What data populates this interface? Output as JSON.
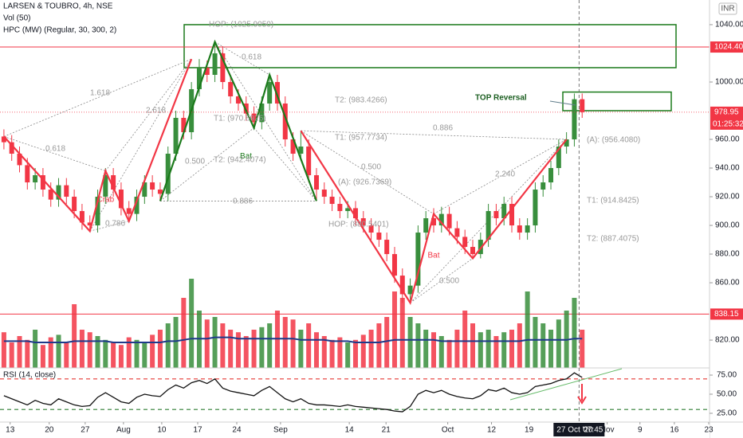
{
  "chart_data": {
    "type": "candlestick",
    "title": "LARSEN & TOUBRO, 4h, NSE",
    "indicator_labels": [
      "Vol (50)",
      "HPC (MW) (Regular, 30, 300, 2)"
    ],
    "currency": "INR",
    "up_color": "#388e3c",
    "down_color": "#f23645",
    "xlim": [
      -0.5,
      90.3
    ],
    "ylim": [
      800.6,
      1057.2
    ],
    "yticks": [
      {
        "value": 820,
        "label": "820.00"
      },
      {
        "value": 860,
        "label": "860.00"
      },
      {
        "value": 880,
        "label": "880.00"
      },
      {
        "value": 900,
        "label": "900.00"
      },
      {
        "value": 920,
        "label": "920.00"
      },
      {
        "value": 940,
        "label": "940.00"
      },
      {
        "value": 960,
        "label": "960.00"
      },
      {
        "value": 1000,
        "label": "1000.00"
      },
      {
        "value": 1040,
        "label": "1040.00"
      }
    ],
    "xticks": [
      {
        "value": 0.8,
        "label": "13"
      },
      {
        "value": 5.8,
        "label": "20"
      },
      {
        "value": 10.4,
        "label": "27"
      },
      {
        "value": 15.3,
        "label": "Aug"
      },
      {
        "value": 20.2,
        "label": "10"
      },
      {
        "value": 24.8,
        "label": "17"
      },
      {
        "value": 29.8,
        "label": "24"
      },
      {
        "value": 35.4,
        "label": "Sep"
      },
      {
        "value": 44.2,
        "label": "14"
      },
      {
        "value": 48.9,
        "label": "21"
      },
      {
        "value": 56.8,
        "label": "Oct"
      },
      {
        "value": 62.4,
        "label": "12"
      },
      {
        "value": 67.2,
        "label": "19"
      },
      {
        "value": 77.2,
        "label": "Nov"
      },
      {
        "value": 81.4,
        "label": "9"
      },
      {
        "value": 85.8,
        "label": "16"
      },
      {
        "value": 90.2,
        "label": "23"
      }
    ],
    "open": [
      962,
      958,
      950,
      942,
      930,
      935,
      925,
      918,
      928,
      920,
      910,
      902,
      900,
      920,
      935,
      925,
      912,
      908,
      920,
      930,
      925,
      922,
      950,
      975,
      965,
      995,
      1010,
      1005,
      1020,
      1000,
      990,
      985,
      978,
      972,
      985,
      1000,
      985,
      960,
      950,
      955,
      935,
      925,
      920,
      915,
      910,
      912,
      905,
      900,
      895,
      890,
      880,
      865,
      852,
      858,
      895,
      905,
      900,
      908,
      898,
      892,
      885,
      880,
      890,
      910,
      905,
      915,
      900,
      895,
      900,
      925,
      930,
      940,
      955,
      960,
      988
    ],
    "high": [
      967,
      963,
      955,
      947,
      940,
      940,
      930,
      933,
      933,
      925,
      915,
      907,
      925,
      940,
      940,
      930,
      917,
      925,
      935,
      935,
      930,
      955,
      980,
      980,
      1000,
      1016,
      1015,
      1028,
      1025,
      1005,
      995,
      990,
      983,
      990,
      1005,
      1005,
      990,
      965,
      966,
      960,
      940,
      930,
      925,
      920,
      917,
      917,
      910,
      905,
      900,
      895,
      885,
      870,
      863,
      900,
      910,
      912,
      913,
      913,
      903,
      897,
      890,
      895,
      915,
      915,
      920,
      920,
      905,
      905,
      930,
      935,
      945,
      960,
      965,
      992,
      992
    ],
    "low": [
      953,
      945,
      937,
      925,
      925,
      920,
      913,
      913,
      915,
      905,
      897,
      896,
      895,
      915,
      920,
      907,
      903,
      903,
      915,
      920,
      917,
      917,
      945,
      960,
      960,
      990,
      1000,
      1000,
      995,
      985,
      980,
      973,
      967,
      967,
      980,
      980,
      955,
      945,
      945,
      930,
      917,
      915,
      910,
      905,
      905,
      900,
      895,
      890,
      885,
      875,
      860,
      846,
      846,
      853,
      890,
      895,
      895,
      893,
      887,
      880,
      877,
      877,
      885,
      900,
      900,
      895,
      890,
      890,
      895,
      920,
      925,
      935,
      950,
      955,
      975
    ],
    "close": [
      958,
      950,
      942,
      930,
      935,
      925,
      918,
      928,
      920,
      910,
      902,
      900,
      920,
      935,
      925,
      912,
      908,
      920,
      930,
      925,
      922,
      950,
      975,
      965,
      995,
      1010,
      1005,
      1020,
      1000,
      990,
      985,
      978,
      972,
      985,
      1000,
      985,
      960,
      950,
      955,
      935,
      925,
      920,
      915,
      910,
      912,
      905,
      900,
      895,
      890,
      880,
      865,
      852,
      858,
      895,
      905,
      900,
      908,
      898,
      892,
      885,
      880,
      890,
      910,
      905,
      915,
      900,
      895,
      900,
      925,
      930,
      940,
      955,
      960,
      988,
      979
    ],
    "volume": [
      28,
      20,
      25,
      22,
      30,
      18,
      24,
      26,
      20,
      50,
      30,
      28,
      25,
      22,
      20,
      18,
      24,
      22,
      20,
      26,
      30,
      35,
      40,
      55,
      70,
      45,
      38,
      40,
      35,
      30,
      28,
      25,
      30,
      32,
      35,
      45,
      40,
      38,
      30,
      35,
      28,
      25,
      22,
      24,
      20,
      22,
      26,
      30,
      35,
      40,
      60,
      55,
      40,
      35,
      30,
      28,
      25,
      22,
      30,
      45,
      35,
      28,
      30,
      25,
      28,
      30,
      35,
      60,
      40,
      35,
      30,
      38,
      45,
      55,
      30
    ],
    "volume_ma": {
      "color": "#1e3a8a",
      "values": [
        21,
        21,
        21,
        21,
        20,
        20,
        20,
        20,
        20,
        21,
        21,
        21,
        21,
        21,
        20,
        20,
        20,
        20,
        20,
        20,
        20,
        21,
        21,
        22,
        23,
        23,
        23,
        24,
        24,
        24,
        23,
        23,
        23,
        23,
        23,
        23,
        23,
        23,
        22,
        22,
        22,
        22,
        21,
        21,
        21,
        20,
        20,
        20,
        20,
        21,
        22,
        22,
        22,
        22,
        22,
        22,
        21,
        21,
        21,
        21,
        21,
        21,
        21,
        21,
        21,
        21,
        21,
        22,
        22,
        22,
        22,
        22,
        22,
        23,
        23
      ]
    },
    "levels": [
      {
        "value": 1024.4,
        "label": "1024.40",
        "color": "#f23645"
      },
      {
        "value": 838.15,
        "label": "838.15",
        "color": "#f23645"
      }
    ],
    "last_price": {
      "value": 978.95,
      "label": "978.95",
      "countdown": "01:25:32"
    },
    "zones": [
      {
        "top": 1040,
        "bottom": 1010,
        "color": "#1b7a1b"
      },
      {
        "top": 993,
        "bottom": 980,
        "color": "#1b7a1b"
      }
    ],
    "patterns": [
      {
        "name": "Crab",
        "color": "#f23645",
        "points": [
          [
            0,
            962
          ],
          [
            11,
            896
          ],
          [
            13,
            938
          ],
          [
            16,
            903
          ],
          [
            24,
            1016
          ]
        ]
      },
      {
        "name": "Bat",
        "color": "#1b7a1b",
        "points": [
          [
            20,
            917
          ],
          [
            27,
            1028
          ],
          [
            32,
            968
          ],
          [
            34,
            1005
          ],
          [
            40,
            917
          ]
        ]
      },
      {
        "name": "Bat",
        "color": "#f23645",
        "points": [
          [
            38,
            966
          ],
          [
            52,
            846
          ],
          [
            55,
            908
          ],
          [
            60,
            877
          ],
          [
            72,
            960
          ]
        ]
      }
    ],
    "annotations": [
      "1.618",
      "0.618",
      "2.618",
      "0.786",
      "0.618",
      "HOP: (1025.9050)",
      "T1: (970.8926)",
      "0.500",
      "T2: (942.4074)",
      "0.886",
      "T2: (983.4266)",
      "T1: (957.7734)",
      "0.886",
      "0.500",
      "(A): (926.7369)",
      "HOP: (880.5401)",
      "0.500",
      "2.240",
      "(A): (956.4080)",
      "T1: (914.8425)",
      "T2: (887.4075)",
      "TOP Reversal"
    ],
    "crosshair": {
      "x": 73.6,
      "date_label": "27 Oct '20",
      "time_label": "07:45"
    },
    "rsi": {
      "label": "RSI (14, close)",
      "color": "#111111",
      "ylim": [
        13.5,
        84.4
      ],
      "yticks": [
        {
          "value": 75,
          "label": "75.00"
        },
        {
          "value": 50,
          "label": "50.00"
        },
        {
          "value": 25,
          "label": "25.00"
        }
      ],
      "levels": [
        {
          "value": 70,
          "color": "#e53935"
        },
        {
          "value": 30,
          "color": "#2e7d32"
        }
      ],
      "values": [
        48,
        44,
        40,
        36,
        42,
        38,
        36,
        44,
        40,
        36,
        34,
        35,
        46,
        52,
        46,
        40,
        38,
        46,
        50,
        48,
        47,
        56,
        62,
        58,
        65,
        68,
        64,
        70,
        58,
        54,
        52,
        50,
        48,
        55,
        60,
        52,
        44,
        40,
        44,
        38,
        36,
        36,
        35,
        34,
        36,
        34,
        33,
        32,
        31,
        30,
        28,
        27,
        34,
        50,
        55,
        52,
        55,
        50,
        47,
        45,
        44,
        48,
        56,
        54,
        58,
        52,
        50,
        52,
        60,
        62,
        64,
        68,
        70,
        78,
        72
      ]
    }
  }
}
